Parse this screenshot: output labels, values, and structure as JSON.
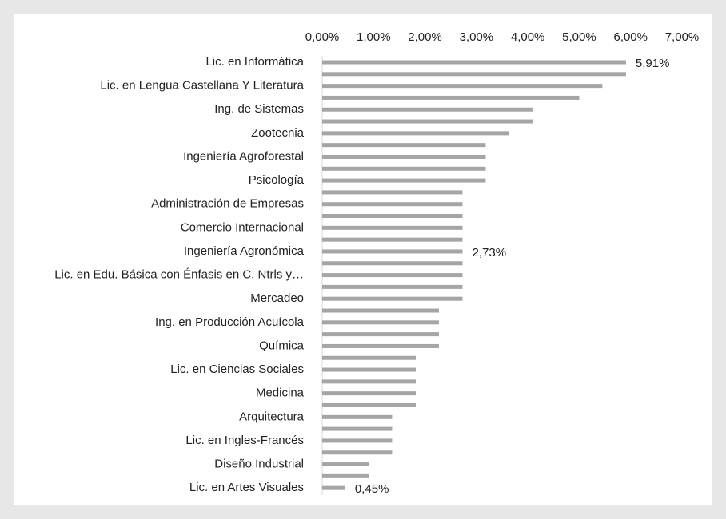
{
  "chart_data": {
    "type": "hbar",
    "color": "#a5a5a5",
    "categories": [
      "Lic. en Informática",
      null,
      "Lic. en Lengua Castellana Y Literatura",
      null,
      "Ing. de Sistemas",
      null,
      "Zootecnia",
      null,
      "Ingeniería Agroforestal",
      null,
      "Psicología",
      null,
      "Administración de Empresas",
      null,
      "Comercio Internacional",
      null,
      "Ingeniería Agronómica",
      null,
      "Lic. en Edu. Básica con Énfasis en C. Ntrls y…",
      null,
      "Mercadeo",
      null,
      "Ing. en Producción Acuícola",
      null,
      "Química",
      null,
      "Lic. en Ciencias Sociales",
      null,
      "Medicina",
      null,
      "Arquitectura",
      null,
      "Lic. en Ingles-Francés",
      null,
      "Diseño Industrial",
      null,
      "Lic. en Artes Visuales"
    ],
    "values": [
      5.91,
      5.91,
      5.45,
      5.0,
      4.09,
      4.09,
      3.64,
      3.18,
      3.18,
      3.18,
      3.18,
      2.73,
      2.73,
      2.73,
      2.73,
      2.73,
      2.73,
      2.73,
      2.73,
      2.73,
      2.73,
      2.27,
      2.27,
      2.27,
      2.27,
      1.82,
      1.82,
      1.82,
      1.82,
      1.82,
      1.36,
      1.36,
      1.36,
      1.36,
      0.91,
      0.91,
      0.45
    ],
    "value_labels": [
      "5,91%",
      null,
      null,
      null,
      null,
      null,
      null,
      null,
      null,
      null,
      null,
      null,
      null,
      null,
      null,
      null,
      "2,73%",
      null,
      null,
      null,
      null,
      null,
      null,
      null,
      null,
      null,
      null,
      null,
      null,
      null,
      null,
      null,
      null,
      null,
      null,
      null,
      "0,45%"
    ],
    "xlim": [
      0,
      7
    ],
    "xticks": [
      {
        "value": 0,
        "label": "0,00%"
      },
      {
        "value": 1,
        "label": "1,00%"
      },
      {
        "value": 2,
        "label": "2,00%"
      },
      {
        "value": 3,
        "label": "3,00%"
      },
      {
        "value": 4,
        "label": "4,00%"
      },
      {
        "value": 5,
        "label": "5,00%"
      },
      {
        "value": 6,
        "label": "6,00%"
      },
      {
        "value": 7,
        "label": "7,00%"
      }
    ]
  }
}
